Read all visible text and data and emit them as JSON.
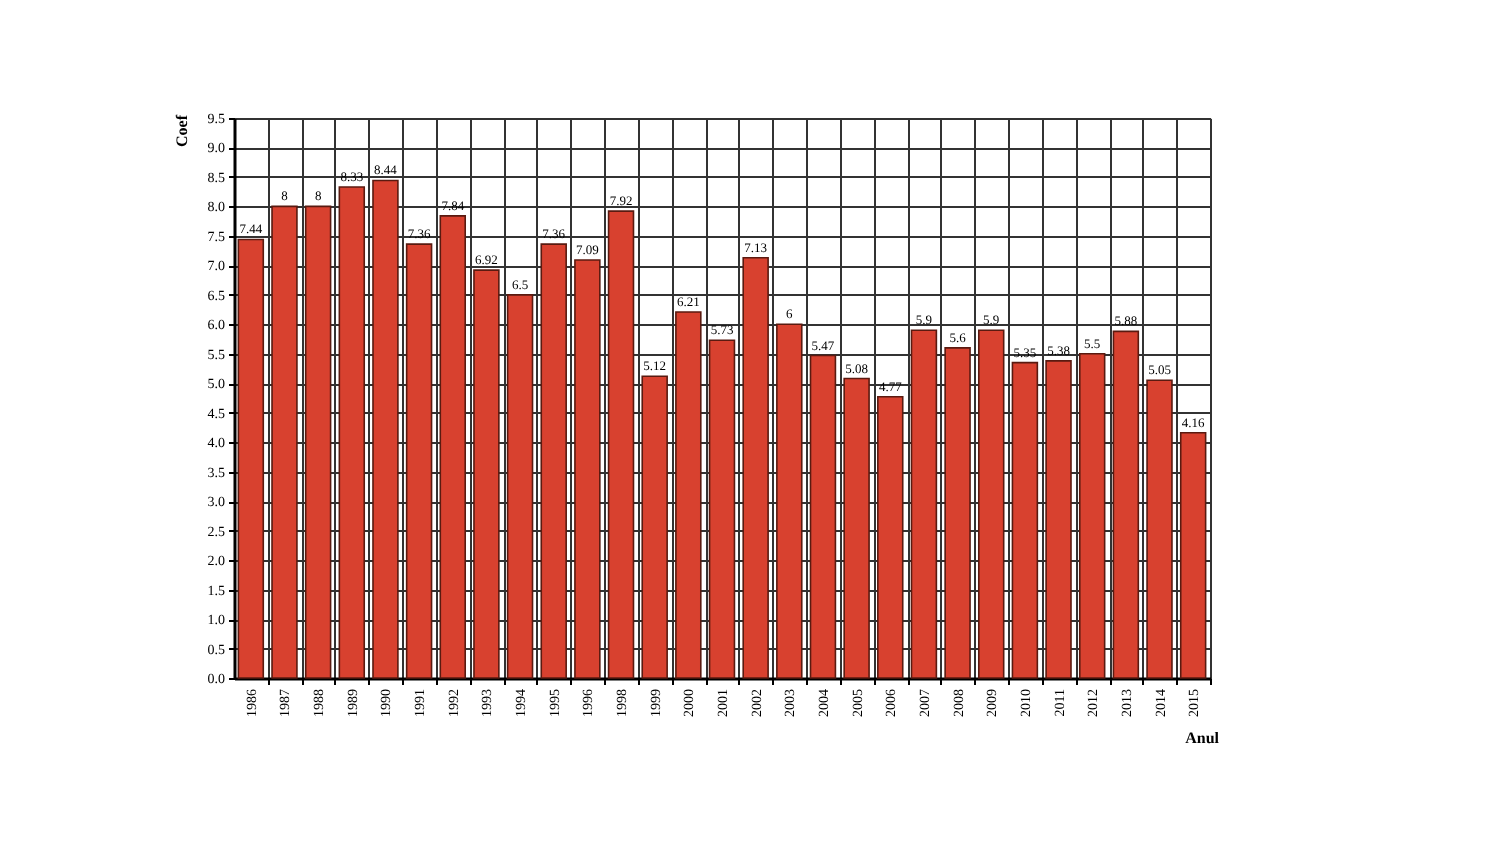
{
  "chart_data": {
    "type": "bar",
    "xlabel": "Anul",
    "ylabel": "Coef",
    "categories": [
      "1986",
      "1987",
      "1988",
      "1989",
      "1990",
      "1991",
      "1992",
      "1993",
      "1994",
      "1995",
      "1996",
      "1998",
      "1999",
      "2000",
      "2001",
      "2002",
      "2003",
      "2004",
      "2005",
      "2006",
      "2007",
      "2008",
      "2009",
      "2010",
      "2011",
      "2012",
      "2013",
      "2014",
      "2015"
    ],
    "values": [
      7.44,
      8,
      8,
      8.33,
      8.44,
      7.36,
      7.84,
      6.92,
      6.5,
      7.36,
      7.09,
      7.92,
      5.12,
      6.21,
      5.73,
      7.13,
      6,
      5.47,
      5.08,
      4.77,
      5.9,
      5.6,
      5.9,
      5.35,
      5.38,
      5.5,
      5.88,
      5.05,
      4.16
    ],
    "color": "#d8412f",
    "ylim": [
      0,
      9.5
    ],
    "yticks": [
      {
        "value": 0,
        "label": "0.0"
      },
      0.5,
      {
        "value": 1,
        "label": "1.0"
      },
      1.5,
      {
        "value": 2,
        "label": "2.0"
      },
      2.5,
      {
        "value": 3,
        "label": "3.0"
      },
      3.5,
      {
        "value": 4,
        "label": "4.0"
      },
      4.5,
      {
        "value": 5,
        "label": "5.0"
      },
      5.5,
      {
        "value": 6,
        "label": "6.0"
      },
      6.5,
      {
        "value": 7,
        "label": "7.0"
      },
      7.5,
      {
        "value": 8,
        "label": "8.0"
      },
      8.5,
      {
        "value": 9,
        "label": "9.0"
      },
      9.5
    ],
    "grid": true,
    "data_labels": true
  }
}
